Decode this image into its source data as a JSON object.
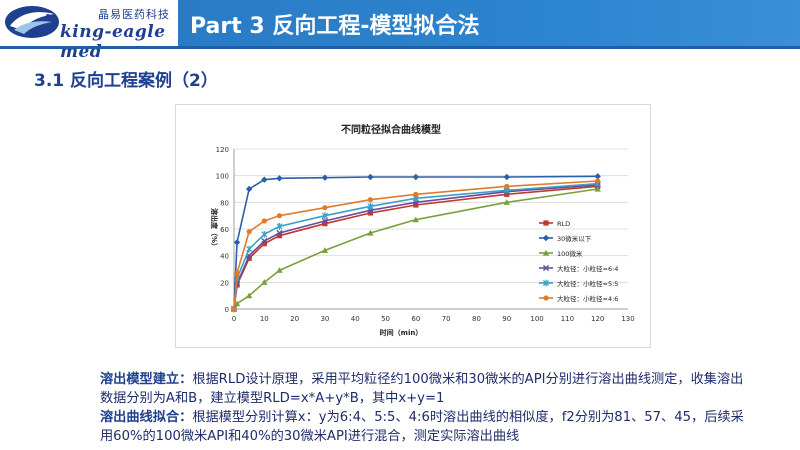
{
  "logo": {
    "cn_text": "晶易医药科技",
    "en_text": "king-eagle med"
  },
  "header": {
    "title": "Part 3 反向工程-模型拟合法"
  },
  "section": {
    "title": "3.1 反向工程案例（2）"
  },
  "colors": {
    "title_bar": "#2d84cf",
    "brand_navy": "#1f3f8f"
  },
  "chart_data": {
    "type": "line",
    "title": "不同粒径拟合曲线模型",
    "xlabel": "时间（min）",
    "ylabel": "溶出度（%）",
    "xlim": [
      0,
      130
    ],
    "ylim": [
      0,
      120
    ],
    "xticks": [
      0,
      10,
      20,
      30,
      40,
      50,
      60,
      70,
      80,
      90,
      100,
      110,
      120,
      130
    ],
    "yticks": [
      0,
      20,
      40,
      60,
      80,
      100,
      120
    ],
    "grid": "horizontal",
    "legend": "right",
    "x": [
      0,
      1,
      5,
      10,
      15,
      30,
      45,
      60,
      90,
      120
    ],
    "series": [
      {
        "name": "RLD",
        "color": "#c0392b",
        "marker": "square",
        "values": [
          0,
          18,
          38,
          49,
          55,
          64,
          72,
          78,
          86,
          92
        ]
      },
      {
        "name": "30微米以下",
        "color": "#2e5ea8",
        "marker": "diamond",
        "values": [
          0,
          50,
          90,
          97,
          98,
          98.5,
          99,
          99,
          99,
          99.5
        ]
      },
      {
        "name": "100微米",
        "color": "#7aa03c",
        "marker": "triangle",
        "values": [
          0,
          4,
          10,
          20,
          29,
          44,
          57,
          67,
          80,
          90
        ]
      },
      {
        "name": "大粒径：小粒径=6:4",
        "color": "#6a4c9c",
        "marker": "x",
        "values": [
          0,
          19,
          40,
          51,
          57,
          66,
          74,
          80,
          88,
          93
        ]
      },
      {
        "name": "大粒径：小粒径=5:5",
        "color": "#3aa0c8",
        "marker": "star",
        "values": [
          0,
          23,
          45,
          56,
          62,
          70,
          77,
          83,
          89,
          94
        ]
      },
      {
        "name": "大粒径：小粒径=4:6",
        "color": "#e07b2a",
        "marker": "circle",
        "values": [
          0,
          27,
          58,
          66,
          70,
          76,
          82,
          86,
          92,
          96
        ]
      }
    ]
  },
  "caption": {
    "label1": "溶出模型建立：",
    "text1": "根据RLD设计原理，采用平均粒径约100微米和30微米的API分别进行溶出曲线测定，收集溶出数据分别为A和B，建立模型RLD=x*A+y*B，其中x+y=1",
    "label2": "溶出曲线拟合：",
    "text2": "根据模型分别计算x：y为6:4、5:5、4:6时溶出曲线的相似度，f2分别为81、57、45，后续采用60%的100微米API和40%的30微米API进行混合，测定实际溶出曲线"
  }
}
